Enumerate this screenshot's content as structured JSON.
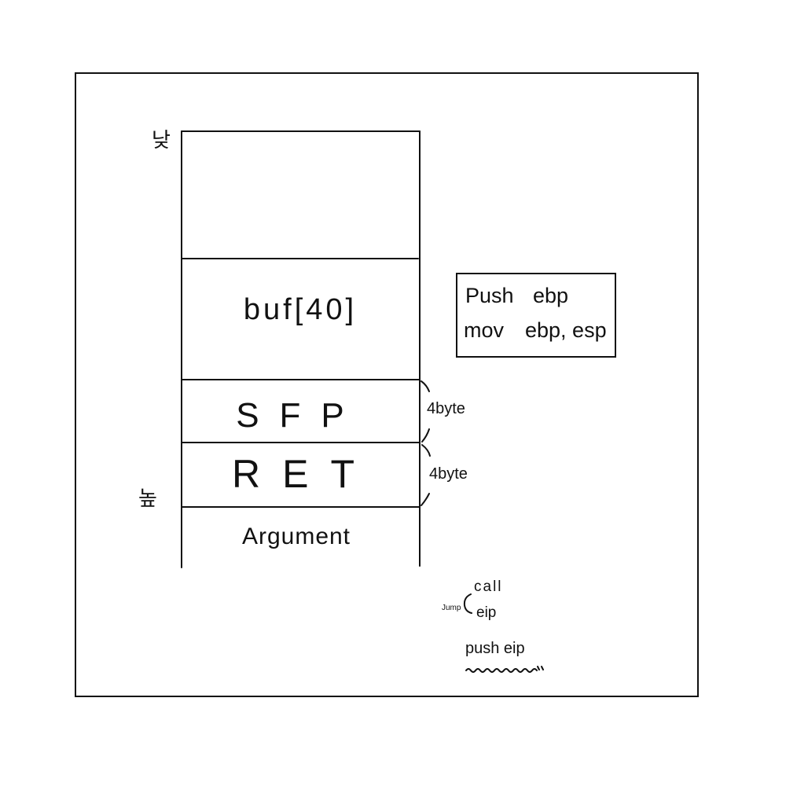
{
  "labels": {
    "low": "낮",
    "high": "높"
  },
  "stack": {
    "buf": "buf[40]",
    "sfp": "SFP",
    "ret": "RET",
    "argument": "Argument",
    "sfp_size": "4byte",
    "ret_size": "4byte"
  },
  "prologue": {
    "line1_op": "Push",
    "line1_arg": "ebp",
    "line2_op": "mov",
    "line2_arg": "ebp, esp"
  },
  "notes": {
    "call": "call",
    "jump": "Jump",
    "eip": "eip",
    "push_eip": "push eip"
  }
}
